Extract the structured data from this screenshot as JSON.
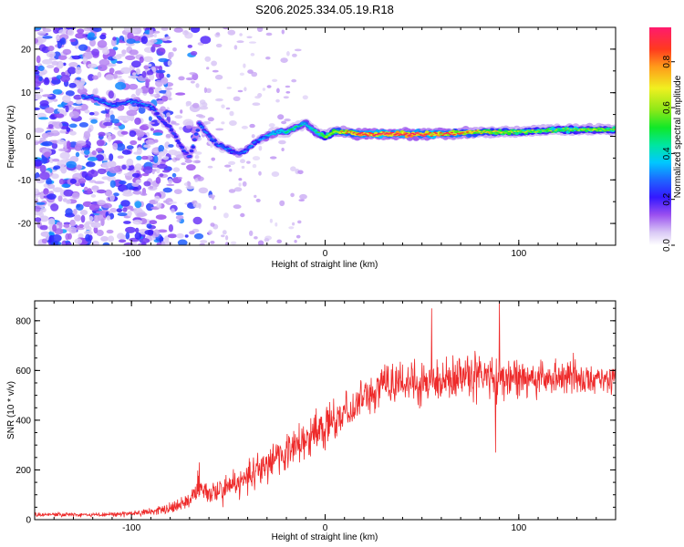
{
  "page_title": "S206.2025.334.05.19.R18",
  "colors": {
    "snr_line": "#ee2a2a",
    "axis": "#000000",
    "background": "#ffffff"
  },
  "chart_data": [
    {
      "type": "heatmap",
      "title": "S206.2025.334.05.19.R18",
      "xlabel": "Height of straight line (km)",
      "ylabel": "Frequency (Hz)",
      "xlim": [
        -150,
        150
      ],
      "ylim": [
        -25,
        25
      ],
      "x_ticks": [
        -100,
        0,
        100
      ],
      "x_tick_labels": [
        "-100",
        "0",
        "100"
      ],
      "y_ticks": [
        -20,
        -10,
        0,
        10,
        20
      ],
      "y_tick_labels": [
        "-20",
        "-10",
        "0",
        "10",
        "20"
      ],
      "colorbar": {
        "label": "Normalized spectral amplitude",
        "range": [
          0,
          0.95
        ],
        "ticks": [
          0,
          0.2,
          0.4,
          0.6,
          0.8
        ],
        "tick_labels": [
          "0.0",
          "0.2",
          "0.4",
          "0.6",
          "0.8"
        ]
      },
      "ridge": {
        "name": "dominant frequency ridge",
        "x": [
          -120,
          -110,
          -100,
          -90,
          -85,
          -80,
          -75,
          -70,
          -65,
          -60,
          -55,
          -50,
          -45,
          -40,
          -35,
          -30,
          -25,
          -20,
          -15,
          -10,
          -5,
          0,
          5,
          10,
          20,
          40,
          60,
          80,
          100,
          120,
          140,
          150
        ],
        "frequency": [
          9,
          7,
          8,
          7,
          4,
          2,
          -2,
          -5,
          3,
          0,
          -2,
          -3,
          -4,
          -3,
          -1,
          0,
          1,
          1,
          2,
          3,
          1,
          0,
          1,
          1,
          0.5,
          0.5,
          0.5,
          1,
          1,
          1.5,
          1.5,
          1.5
        ],
        "amplitude": [
          0.3,
          0.3,
          0.3,
          0.3,
          0.25,
          0.25,
          0.25,
          0.25,
          0.3,
          0.3,
          0.3,
          0.3,
          0.25,
          0.3,
          0.3,
          0.35,
          0.4,
          0.45,
          0.45,
          0.4,
          0.45,
          0.6,
          0.65,
          0.75,
          0.95,
          0.95,
          0.9,
          0.7,
          0.6,
          0.55,
          0.6,
          0.6
        ]
      }
    },
    {
      "type": "line",
      "xlabel": "Height of straight line (km)",
      "ylabel": "SNR (10 * v/v)",
      "xlim": [
        -150,
        150
      ],
      "ylim": [
        0,
        880
      ],
      "x_ticks": [
        -100,
        0,
        100
      ],
      "x_tick_labels": [
        "-100",
        "0",
        "100"
      ],
      "y_ticks": [
        0,
        200,
        400,
        600,
        800
      ],
      "y_tick_labels": [
        "0",
        "200",
        "400",
        "600",
        "800"
      ],
      "series": [
        {
          "name": "SNR",
          "color": "#ee2a2a",
          "x": [
            -150,
            -140,
            -130,
            -120,
            -110,
            -100,
            -90,
            -80,
            -70,
            -65,
            -60,
            -50,
            -40,
            -30,
            -20,
            -10,
            0,
            10,
            20,
            30,
            40,
            50,
            60,
            70,
            80,
            90,
            100,
            110,
            120,
            130,
            140,
            150
          ],
          "mean": [
            20,
            20,
            20,
            20,
            22,
            25,
            30,
            45,
            80,
            140,
            100,
            130,
            170,
            230,
            280,
            320,
            380,
            430,
            490,
            540,
            550,
            560,
            570,
            570,
            575,
            570,
            570,
            575,
            570,
            575,
            570,
            570
          ],
          "spread": [
            12,
            12,
            12,
            12,
            12,
            15,
            20,
            30,
            50,
            90,
            60,
            80,
            90,
            100,
            110,
            110,
            110,
            110,
            110,
            120,
            130,
            130,
            130,
            120,
            120,
            120,
            110,
            100,
            100,
            90,
            80,
            70
          ],
          "peaks": [
            {
              "x": -65,
              "y": 230
            },
            {
              "x": 55,
              "y": 850
            },
            {
              "x": 90,
              "y": 880
            },
            {
              "x": 88,
              "y": 270
            }
          ]
        }
      ]
    }
  ]
}
